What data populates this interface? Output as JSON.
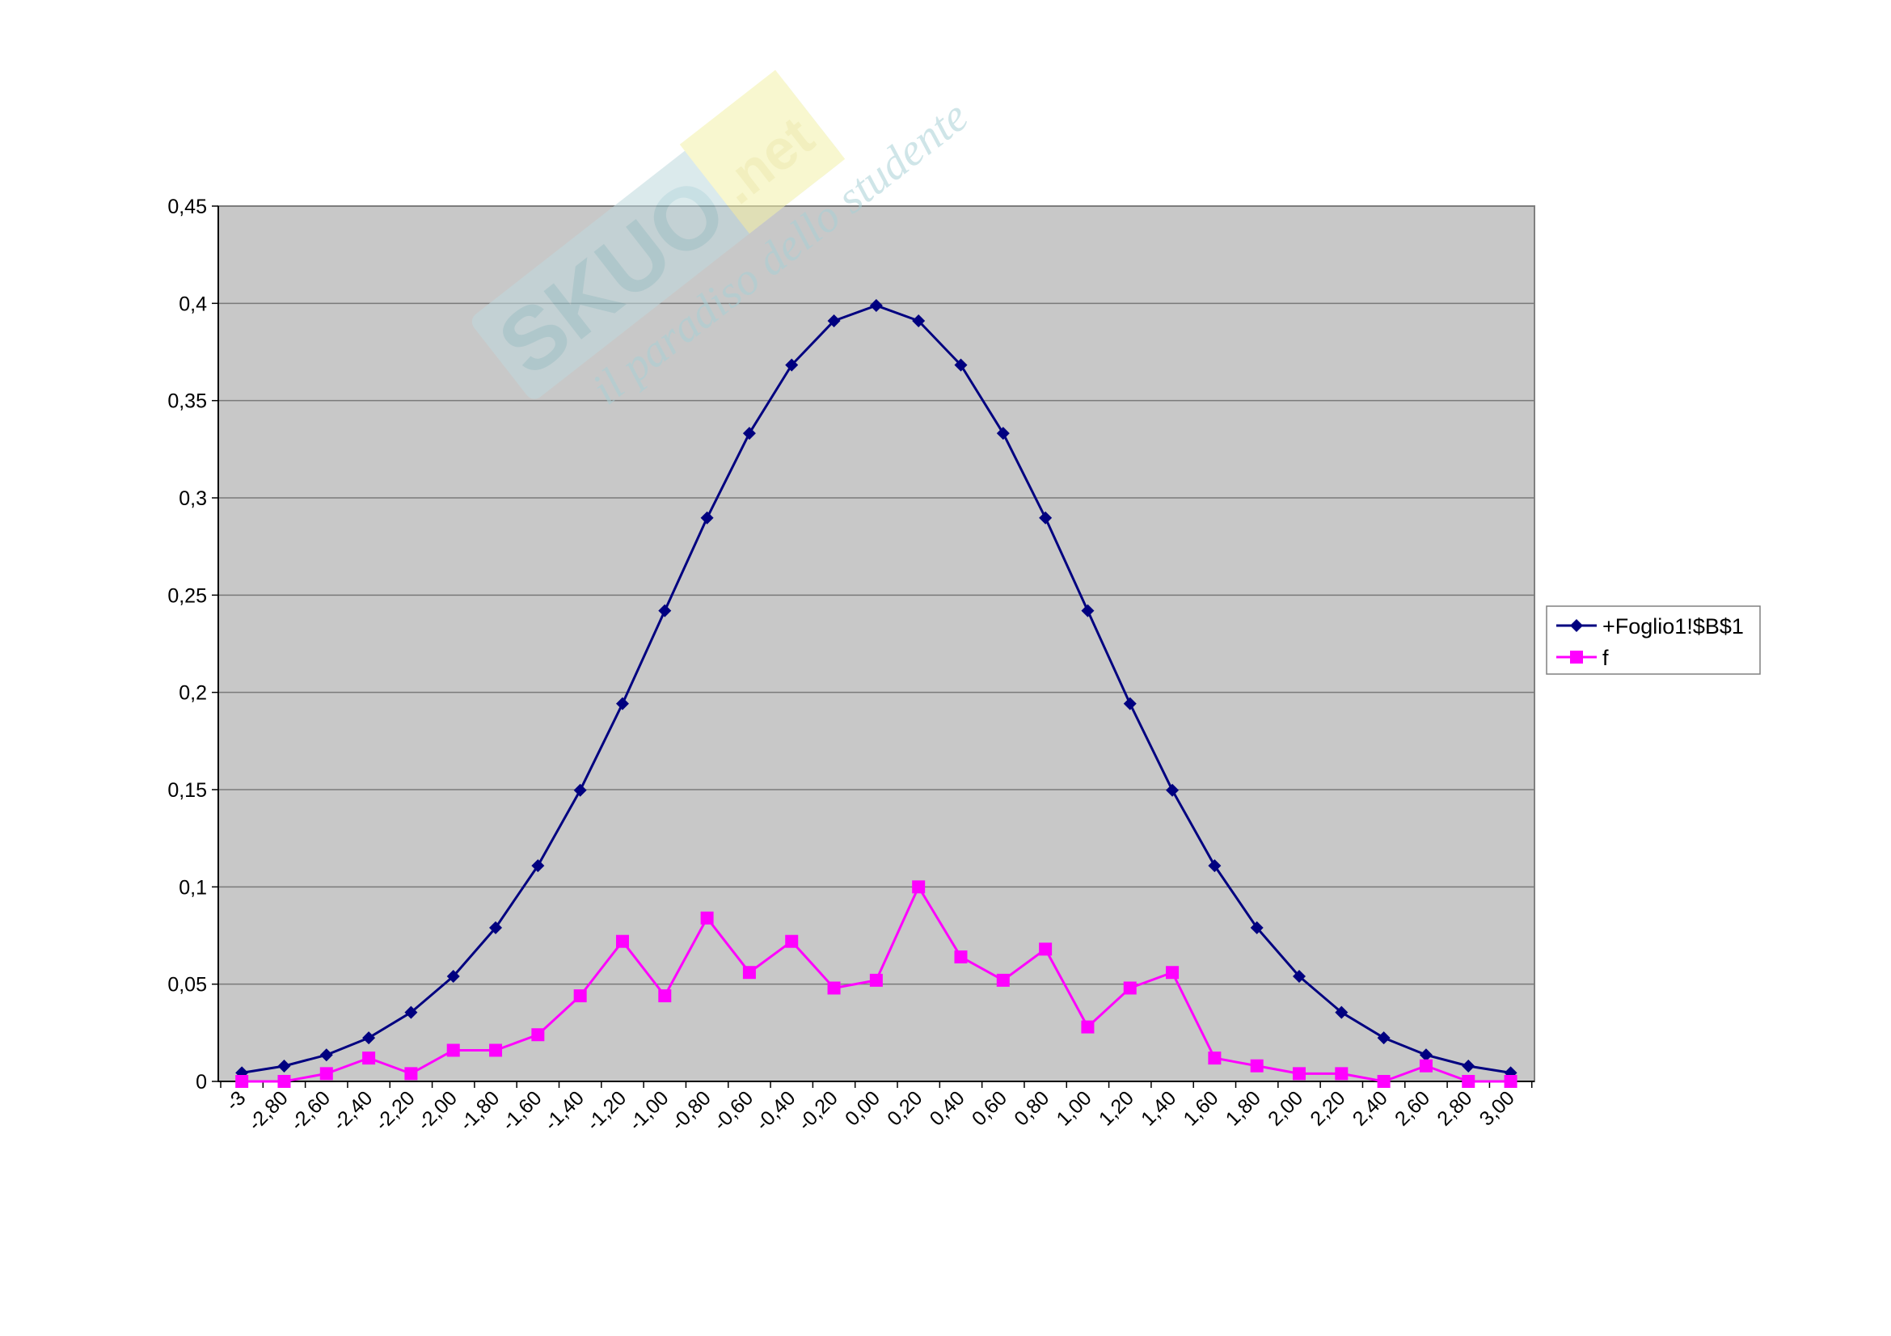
{
  "chart_data": {
    "type": "line",
    "title": "",
    "xlabel": "",
    "ylabel": "",
    "categories": [
      "-3",
      "-2,80",
      "-2,60",
      "-2,40",
      "-2,20",
      "-2,00",
      "-1,80",
      "-1,60",
      "-1,40",
      "-1,20",
      "-1,00",
      "-0,80",
      "-0,60",
      "-0,40",
      "-0,20",
      "0,00",
      "0,20",
      "0,40",
      "0,60",
      "0,80",
      "1,00",
      "1,20",
      "1,40",
      "1,60",
      "1,80",
      "2,00",
      "2,20",
      "2,40",
      "2,60",
      "2,80",
      "3,00"
    ],
    "series": [
      {
        "name": "+Foglio1!$B$1",
        "color": "#000080",
        "marker": "diamond",
        "values": [
          0.0044,
          0.0079,
          0.0136,
          0.0224,
          0.0355,
          0.054,
          0.079,
          0.1109,
          0.1497,
          0.1942,
          0.242,
          0.2897,
          0.3332,
          0.3683,
          0.391,
          0.3989,
          0.391,
          0.3683,
          0.3332,
          0.2897,
          0.242,
          0.1942,
          0.1497,
          0.1109,
          0.079,
          0.054,
          0.0355,
          0.0224,
          0.0136,
          0.0079,
          0.0044
        ]
      },
      {
        "name": "f",
        "color": "#FF00FF",
        "marker": "square",
        "values": [
          0,
          0,
          0.004,
          0.012,
          0.004,
          0.016,
          0.016,
          0.024,
          0.044,
          0.072,
          0.044,
          0.084,
          0.056,
          0.072,
          0.048,
          0.052,
          0.1,
          0.064,
          0.052,
          0.068,
          0.028,
          0.048,
          0.056,
          0.012,
          0.008,
          0.004,
          0.004,
          0,
          0.008,
          0,
          0
        ]
      }
    ],
    "y_ticks": [
      {
        "value": 0,
        "label": "0"
      },
      {
        "value": 0.05,
        "label": "0,05"
      },
      {
        "value": 0.1,
        "label": "0,1"
      },
      {
        "value": 0.15,
        "label": "0,15"
      },
      {
        "value": 0.2,
        "label": "0,2"
      },
      {
        "value": 0.25,
        "label": "0,25"
      },
      {
        "value": 0.3,
        "label": "0,3"
      },
      {
        "value": 0.35,
        "label": "0,35"
      },
      {
        "value": 0.4,
        "label": "0,4"
      },
      {
        "value": 0.45,
        "label": "0,45"
      }
    ],
    "ylim": [
      0,
      0.45
    ],
    "grid": true,
    "plot_background": "#C0C0C0",
    "legend_position": "right"
  },
  "watermark": {
    "brand_main": "SKUOLA",
    "brand_suffix": ".net",
    "tagline": "il paradiso dello studente"
  }
}
